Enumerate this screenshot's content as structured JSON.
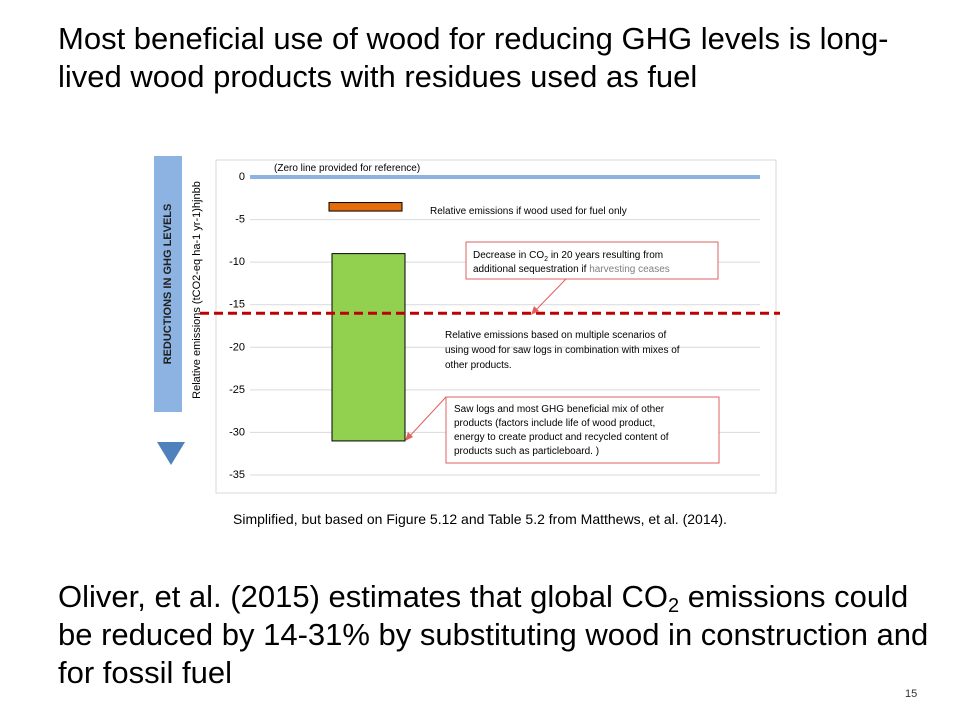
{
  "slide": {
    "title": "Most beneficial use of wood for reducing GHG levels is long-lived wood products with residues used as fuel",
    "caption": "Simplified, but based on Figure 5.12 and Table 5.2 from Matthews, et al. (2014).",
    "bottom_text_before": "Oliver, et al. (2015) estimates that global CO",
    "bottom_text_sub": "2",
    "bottom_text_after": " emissions could be reduced by 14-31% by substituting wood in construction and for fossil fuel",
    "slide_number": "15"
  },
  "chart_data": {
    "type": "bar",
    "ylabel": "Relative emissions (tCO2-eq ha-1 yr-1)hjnbb",
    "side_label": "REDUCTIONS IN GHG LEVELS",
    "ylim": [
      -35,
      0
    ],
    "yticks": [
      "0",
      "-5",
      "-10",
      "-15",
      "-20",
      "-25",
      "-30",
      "-35"
    ],
    "bars": [
      {
        "label": "Saw logs and most GHG beneficial mix of other products",
        "top": -9,
        "bottom": -31,
        "color": "#92d050"
      },
      {
        "label": "Relative emissions if wood used for fuel only",
        "top": -3,
        "bottom": -4,
        "color": "#e46c0a"
      }
    ],
    "lines": [
      {
        "label": "(Zero line provided for reference)",
        "value": 0,
        "color": "#8db3e2",
        "style": "solid"
      },
      {
        "label": "Decrease in CO2 in 20 years resulting from additional sequestration if harvesting ceases",
        "value": -16,
        "color": "#c00000",
        "style": "dashed"
      }
    ],
    "annotations": {
      "zero_line": "(Zero line provided for reference)",
      "fuel_only": "Relative emissions if wood used for fuel only",
      "decrease_line1_before": "Decrease in CO",
      "decrease_line1_sub": "2",
      "decrease_line1_after": " in 20 years resulting from",
      "decrease_line2_start": "additional sequestration if ",
      "decrease_line2_end": "harvesting ceases",
      "multiple_line1": "Relative emissions based on multiple scenarios of",
      "multiple_line2": "using wood for saw logs in combination with mixes of",
      "multiple_line3": "other products.",
      "sawlogs_line1": "Saw logs and most GHG beneficial mix of other",
      "sawlogs_line2": "products (factors include life of wood product,",
      "sawlogs_line3": "energy to create product and recycled content of",
      "sawlogs_line4": "products such as particleboard. )"
    },
    "colors": {
      "side_bar": "#8db3e2",
      "arrow": "#4f81bd",
      "callout_border": "#e06060",
      "gray_text": "#7f7f7f"
    }
  }
}
